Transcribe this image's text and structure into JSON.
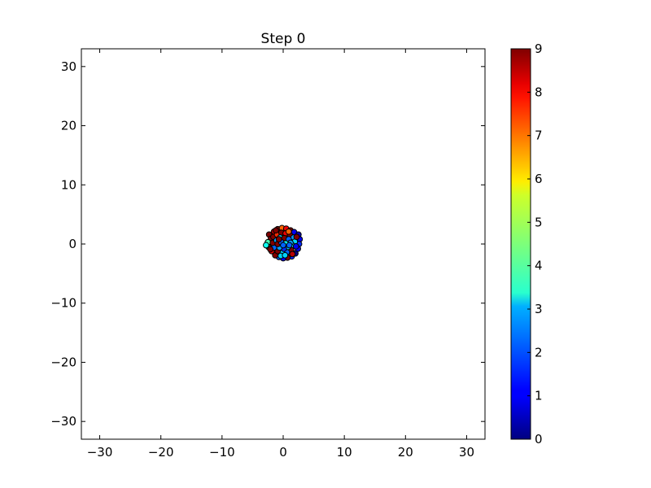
{
  "chart_data": {
    "type": "scatter",
    "title": "Step 0",
    "xlabel": "",
    "ylabel": "",
    "xlim": [
      -33,
      33
    ],
    "ylim": [
      -33,
      33
    ],
    "xticks": [
      -30,
      -20,
      -10,
      0,
      10,
      20,
      30
    ],
    "yticks": [
      -30,
      -20,
      -10,
      0,
      10,
      20,
      30
    ],
    "xtick_labels": [
      "−30",
      "−20",
      "−10",
      "0",
      "10",
      "20",
      "30"
    ],
    "ytick_labels": [
      "−30",
      "−20",
      "−10",
      "0",
      "10",
      "20",
      "30"
    ],
    "grid": false,
    "colormap": "jet",
    "colorbar": {
      "range": [
        0,
        9
      ],
      "ticks": [
        0,
        1,
        2,
        3,
        4,
        5,
        6,
        7,
        8,
        9
      ],
      "tick_labels": [
        "0",
        "1",
        "2",
        "3",
        "4",
        "5",
        "6",
        "7",
        "8",
        "9"
      ]
    },
    "marker_edge_color": "#000000",
    "points": [
      {
        "x": -2.3,
        "y": 1.6,
        "c": 9
      },
      {
        "x": -2.0,
        "y": 0.9,
        "c": 9
      },
      {
        "x": -1.5,
        "y": 2.1,
        "c": 8.5
      },
      {
        "x": -0.9,
        "y": 2.5,
        "c": 9
      },
      {
        "x": -0.2,
        "y": 2.7,
        "c": 7
      },
      {
        "x": 0.5,
        "y": 2.6,
        "c": 8
      },
      {
        "x": 1.2,
        "y": 2.3,
        "c": 9
      },
      {
        "x": 1.8,
        "y": 2.0,
        "c": 1
      },
      {
        "x": 2.5,
        "y": 1.6,
        "c": 0.5
      },
      {
        "x": 2.7,
        "y": 0.8,
        "c": 1
      },
      {
        "x": 2.6,
        "y": 0.0,
        "c": 1.5
      },
      {
        "x": 2.4,
        "y": -0.8,
        "c": 1
      },
      {
        "x": 2.0,
        "y": -1.6,
        "c": 0
      },
      {
        "x": 1.4,
        "y": -2.1,
        "c": 1.5
      },
      {
        "x": 0.7,
        "y": -2.3,
        "c": 9
      },
      {
        "x": 0.0,
        "y": -2.4,
        "c": 1
      },
      {
        "x": -0.7,
        "y": -2.2,
        "c": 2
      },
      {
        "x": -1.3,
        "y": -1.9,
        "c": 9
      },
      {
        "x": -1.9,
        "y": -1.2,
        "c": 8
      },
      {
        "x": -2.4,
        "y": -0.5,
        "c": 9
      },
      {
        "x": -2.5,
        "y": 0.3,
        "c": 4
      },
      {
        "x": -2.8,
        "y": -0.2,
        "c": 3.5
      },
      {
        "x": -1.6,
        "y": 1.2,
        "c": 9
      },
      {
        "x": -1.0,
        "y": 1.6,
        "c": 7.5
      },
      {
        "x": -0.3,
        "y": 1.9,
        "c": 9
      },
      {
        "x": 0.4,
        "y": 1.8,
        "c": 8
      },
      {
        "x": 1.1,
        "y": 1.5,
        "c": 9
      },
      {
        "x": 1.7,
        "y": 1.1,
        "c": 2.5
      },
      {
        "x": 1.9,
        "y": 0.4,
        "c": 3
      },
      {
        "x": 1.6,
        "y": -0.3,
        "c": 3.5
      },
      {
        "x": 1.3,
        "y": -1.0,
        "c": 9
      },
      {
        "x": 0.6,
        "y": -1.4,
        "c": 2
      },
      {
        "x": -0.2,
        "y": -1.5,
        "c": 3
      },
      {
        "x": -0.9,
        "y": -1.2,
        "c": 9
      },
      {
        "x": -1.5,
        "y": -0.6,
        "c": 2
      },
      {
        "x": -1.7,
        "y": 0.2,
        "c": 9
      },
      {
        "x": -1.1,
        "y": 0.6,
        "c": 2.5
      },
      {
        "x": -0.5,
        "y": 1.1,
        "c": 3
      },
      {
        "x": 0.2,
        "y": 1.0,
        "c": 9
      },
      {
        "x": 0.9,
        "y": 0.8,
        "c": 2
      },
      {
        "x": 1.2,
        "y": 0.2,
        "c": 2.5
      },
      {
        "x": 0.8,
        "y": -0.5,
        "c": 3
      },
      {
        "x": 0.1,
        "y": -0.8,
        "c": 1.5
      },
      {
        "x": -0.6,
        "y": -0.6,
        "c": 2.5
      },
      {
        "x": -0.9,
        "y": 0.0,
        "c": 9
      },
      {
        "x": -0.3,
        "y": 0.3,
        "c": 2
      },
      {
        "x": 0.4,
        "y": 0.1,
        "c": 3.5
      },
      {
        "x": 0.0,
        "y": -0.2,
        "c": 2
      },
      {
        "x": 1.5,
        "y": -1.7,
        "c": 8.5
      },
      {
        "x": -0.4,
        "y": -2.0,
        "c": 3
      },
      {
        "x": 0.9,
        "y": 2.1,
        "c": 7
      },
      {
        "x": -2.1,
        "y": -0.9,
        "c": 9
      },
      {
        "x": 2.2,
        "y": 1.2,
        "c": 9
      },
      {
        "x": 2.1,
        "y": -0.4,
        "c": 1
      },
      {
        "x": -1.2,
        "y": 2.3,
        "c": 9
      },
      {
        "x": 0.3,
        "y": -1.9,
        "c": 3
      },
      {
        "x": -0.7,
        "y": 0.8,
        "c": 9
      },
      {
        "x": 1.0,
        "y": -0.2,
        "c": 2
      }
    ]
  }
}
